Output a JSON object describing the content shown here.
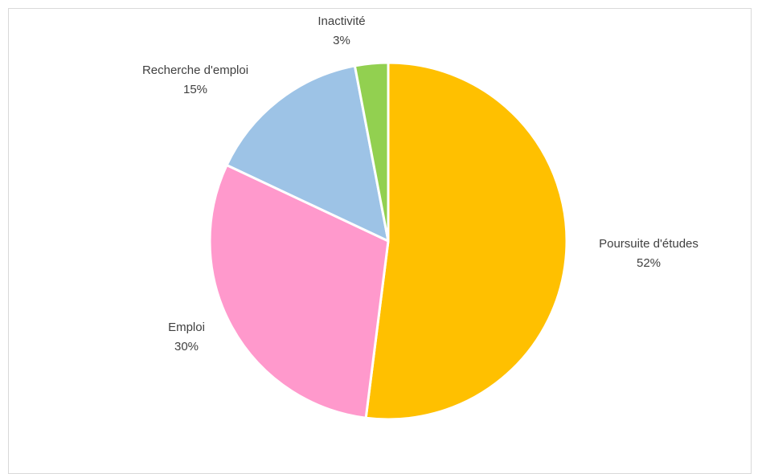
{
  "chart_data": {
    "type": "pie",
    "title": "",
    "colors": {
      "text": "#404040",
      "title": "#e00000",
      "frame": "#d9d9d9",
      "slice_border": "#ffffff"
    },
    "slices": [
      {
        "label": "Poursuite d'études",
        "value": 52,
        "value_label": "52%",
        "color": "#ffc000"
      },
      {
        "label": "Emploi",
        "value": 30,
        "value_label": "30%",
        "color": "#ff99cc"
      },
      {
        "label": "Recherche d'emploi",
        "value": 15,
        "value_label": "15%",
        "color": "#9dc3e6"
      },
      {
        "label": "Inactivité",
        "value": 3,
        "value_label": "3%",
        "color": "#92d050"
      }
    ],
    "start": "12 o'clock",
    "direction": "clockwise",
    "legend": "none (labels beside slices)"
  }
}
